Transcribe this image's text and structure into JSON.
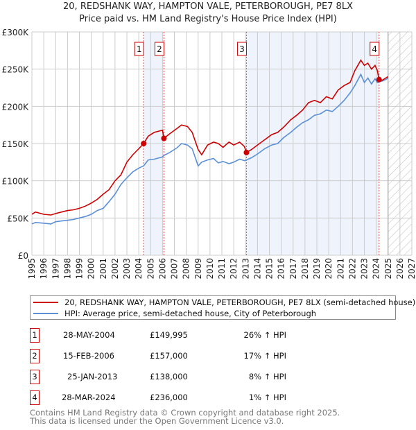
{
  "title_line1": "20, REDSHANK WAY, HAMPTON VALE, PETERBOROUGH, PE7 8LX",
  "title_line2": "Price paid vs. HM Land Registry's House Price Index (HPI)",
  "colors": {
    "property": "#cc0000",
    "hpi": "#5b8fd6",
    "shade": "#eef3fc",
    "grid": "#cccccc",
    "marker_line": "#e05050"
  },
  "chart_data": {
    "type": "line",
    "xlim": [
      1995,
      2027
    ],
    "ylim": [
      0,
      300000
    ],
    "y_ticks": [
      {
        "v": 0,
        "label": "£0"
      },
      {
        "v": 50000,
        "label": "£50K"
      },
      {
        "v": 100000,
        "label": "£100K"
      },
      {
        "v": 150000,
        "label": "£150K"
      },
      {
        "v": 200000,
        "label": "£200K"
      },
      {
        "v": 250000,
        "label": "£250K"
      },
      {
        "v": 300000,
        "label": "£300K"
      }
    ],
    "x_ticks": [
      "1995",
      "1996",
      "1997",
      "1998",
      "1999",
      "2000",
      "2001",
      "2002",
      "2003",
      "2004",
      "2005",
      "2006",
      "2007",
      "2008",
      "2009",
      "2010",
      "2011",
      "2012",
      "2013",
      "2014",
      "2015",
      "2016",
      "2017",
      "2018",
      "2019",
      "2020",
      "2021",
      "2022",
      "2023",
      "2024",
      "2025",
      "2026",
      "2027"
    ],
    "forecast_from": 2025.0,
    "shaded_ranges": [
      [
        2004.41,
        2006.12
      ],
      [
        2013.07,
        2024.24
      ]
    ],
    "series": [
      {
        "name": "20, REDSHANK WAY, HAMPTON VALE, PETERBOROUGH, PE7 8LX (semi-detached house)",
        "color": "#cc0000",
        "x": [
          1995,
          1995.3,
          1996,
          1996.6,
          1997,
          1997.5,
          1998,
          1998.5,
          1999,
          1999.5,
          2000,
          2000.5,
          2001,
          2001.5,
          2002,
          2002.5,
          2003,
          2003.5,
          2004,
          2004.41,
          2004.8,
          2005.3,
          2006.0,
          2006.12,
          2006.6,
          2007.2,
          2007.6,
          2008.1,
          2008.5,
          2009.0,
          2009.3,
          2009.8,
          2010.3,
          2010.7,
          2011.1,
          2011.6,
          2012.0,
          2012.5,
          2012.9,
          2013.07,
          2013.5,
          2014.0,
          2014.6,
          2015.2,
          2015.7,
          2016.2,
          2016.8,
          2017.3,
          2017.8,
          2018.3,
          2018.8,
          2019.3,
          2019.8,
          2020.3,
          2020.8,
          2021.3,
          2021.8,
          2022.2,
          2022.7,
          2023.0,
          2023.3,
          2023.6,
          2023.9,
          2024.1,
          2024.24,
          2024.5,
          2024.8,
          2025.0
        ],
        "y": [
          55000,
          58000,
          55000,
          54000,
          56000,
          58000,
          60000,
          61000,
          63000,
          66000,
          70000,
          75000,
          82000,
          88000,
          100000,
          108000,
          125000,
          135000,
          143000,
          149995,
          160000,
          165000,
          168000,
          157000,
          163000,
          170000,
          175000,
          173000,
          165000,
          142000,
          135000,
          148000,
          152000,
          150000,
          145000,
          152000,
          148000,
          152000,
          146000,
          138000,
          142000,
          148000,
          155000,
          162000,
          165000,
          172000,
          182000,
          188000,
          195000,
          205000,
          208000,
          205000,
          213000,
          210000,
          222000,
          228000,
          232000,
          248000,
          262000,
          255000,
          258000,
          250000,
          255000,
          248000,
          236000,
          235000,
          238000,
          240000
        ]
      },
      {
        "name": "HPI: Average price, semi-detached house, City of Peterborough",
        "color": "#5b8fd6",
        "x": [
          1995,
          1995.3,
          1996,
          1996.6,
          1997,
          1997.5,
          1998,
          1998.5,
          1999,
          1999.5,
          2000,
          2000.5,
          2001,
          2001.5,
          2002,
          2002.5,
          2003,
          2003.5,
          2004,
          2004.41,
          2004.8,
          2005.3,
          2006.0,
          2006.12,
          2006.6,
          2007.2,
          2007.6,
          2008.1,
          2008.5,
          2009.0,
          2009.3,
          2009.8,
          2010.3,
          2010.7,
          2011.1,
          2011.6,
          2012.0,
          2012.5,
          2012.9,
          2013.07,
          2013.5,
          2014.0,
          2014.6,
          2015.2,
          2015.7,
          2016.2,
          2016.8,
          2017.3,
          2017.8,
          2018.3,
          2018.8,
          2019.3,
          2019.8,
          2020.3,
          2020.8,
          2021.3,
          2021.8,
          2022.2,
          2022.7,
          2023.0,
          2023.3,
          2023.6,
          2023.9,
          2024.1,
          2024.24,
          2024.5,
          2024.8,
          2025.0
        ],
        "y": [
          42000,
          44000,
          43000,
          42000,
          45000,
          46000,
          47000,
          48000,
          50000,
          52000,
          55000,
          60000,
          63000,
          72000,
          82000,
          95000,
          104000,
          112000,
          117000,
          120000,
          128000,
          129000,
          132000,
          134000,
          138000,
          144000,
          150000,
          148000,
          143000,
          120000,
          125000,
          128000,
          130000,
          124000,
          126000,
          123000,
          125000,
          129000,
          127000,
          128000,
          131000,
          136000,
          143000,
          148000,
          150000,
          158000,
          165000,
          172000,
          178000,
          182000,
          188000,
          190000,
          195000,
          193000,
          200000,
          208000,
          218000,
          228000,
          243000,
          232000,
          238000,
          230000,
          237000,
          232000,
          233000,
          234000,
          236000,
          238000
        ]
      }
    ],
    "markers": [
      {
        "label": "1",
        "x": 2004.41,
        "y": 149995
      },
      {
        "label": "2",
        "x": 2006.12,
        "y": 157000
      },
      {
        "label": "3",
        "x": 2013.07,
        "y": 138000
      },
      {
        "label": "4",
        "x": 2024.24,
        "y": 236000
      }
    ]
  },
  "transactions": [
    {
      "num": "1",
      "date": "28-MAY-2004",
      "price": "£149,995",
      "hpi": "26% ↑ HPI"
    },
    {
      "num": "2",
      "date": "15-FEB-2006",
      "price": "£157,000",
      "hpi": "17% ↑ HPI"
    },
    {
      "num": "3",
      "date": "25-JAN-2013",
      "price": "£138,000",
      "hpi": "8% ↑ HPI"
    },
    {
      "num": "4",
      "date": "28-MAR-2024",
      "price": "£236,000",
      "hpi": "1% ↑ HPI"
    }
  ],
  "footer_line1": "Contains HM Land Registry data © Crown copyright and database right 2025.",
  "footer_line2": "This data is licensed under the Open Government Licence v3.0."
}
